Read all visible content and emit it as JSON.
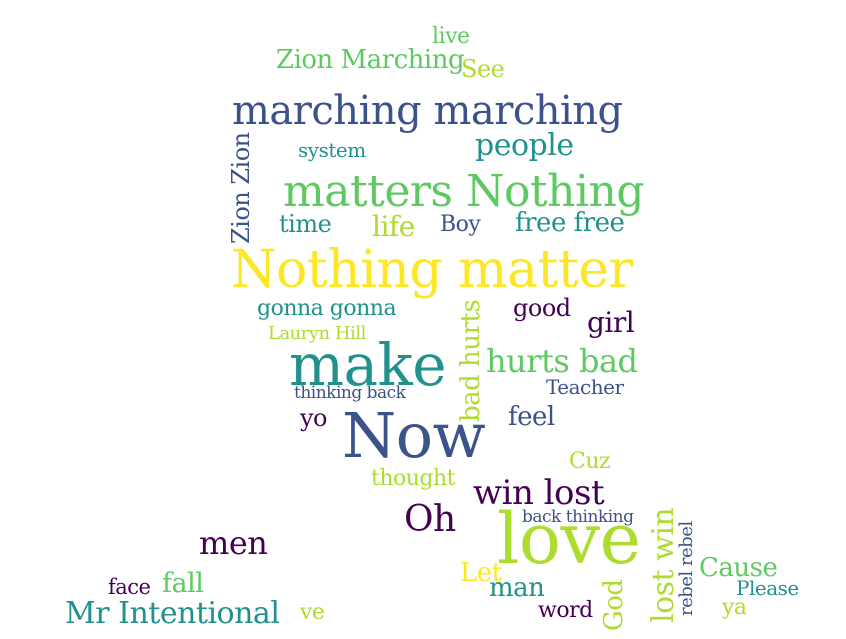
{
  "palette": {
    "dark_purple": "#440154",
    "indigo": "#3b528b",
    "teal": "#21918c",
    "green": "#5ec962",
    "lime": "#addc30",
    "yellow": "#fde725"
  },
  "words": [
    {
      "text": "live",
      "color": "green"
    },
    {
      "text": "Zion Marching",
      "color": "green"
    },
    {
      "text": "See",
      "color": "lime"
    },
    {
      "text": "marching marching",
      "color": "indigo"
    },
    {
      "text": "people",
      "color": "teal"
    },
    {
      "text": "system",
      "color": "teal"
    },
    {
      "text": "Zion Zion",
      "color": "indigo"
    },
    {
      "text": "matters Nothing",
      "color": "green"
    },
    {
      "text": "time",
      "color": "teal"
    },
    {
      "text": "life",
      "color": "lime"
    },
    {
      "text": "Boy",
      "color": "indigo"
    },
    {
      "text": "free free",
      "color": "teal"
    },
    {
      "text": "Nothing matter",
      "color": "yellow"
    },
    {
      "text": "gonna gonna",
      "color": "teal"
    },
    {
      "text": "good",
      "color": "dark_purple"
    },
    {
      "text": "girl",
      "color": "dark_purple"
    },
    {
      "text": "Lauryn Hill",
      "color": "lime"
    },
    {
      "text": "bad hurts",
      "color": "lime"
    },
    {
      "text": "make",
      "color": "teal"
    },
    {
      "text": "hurts bad",
      "color": "green"
    },
    {
      "text": "Teacher",
      "color": "indigo"
    },
    {
      "text": "thinking back",
      "color": "indigo"
    },
    {
      "text": "yo",
      "color": "dark_purple"
    },
    {
      "text": "Now",
      "color": "indigo"
    },
    {
      "text": "feel",
      "color": "indigo"
    },
    {
      "text": "Cuz",
      "color": "lime"
    },
    {
      "text": "thought",
      "color": "lime"
    },
    {
      "text": "win lost",
      "color": "dark_purple"
    },
    {
      "text": "Oh",
      "color": "dark_purple"
    },
    {
      "text": "back thinking",
      "color": "indigo"
    },
    {
      "text": "love",
      "color": "lime"
    },
    {
      "text": "lost win",
      "color": "lime"
    },
    {
      "text": "rebel rebel",
      "color": "indigo"
    },
    {
      "text": "men",
      "color": "dark_purple"
    },
    {
      "text": "Cause",
      "color": "green"
    },
    {
      "text": "Let",
      "color": "yellow"
    },
    {
      "text": "face",
      "color": "dark_purple"
    },
    {
      "text": "fall",
      "color": "green"
    },
    {
      "text": "man",
      "color": "teal"
    },
    {
      "text": "Please",
      "color": "teal"
    },
    {
      "text": "God",
      "color": "lime"
    },
    {
      "text": "ya",
      "color": "lime"
    },
    {
      "text": "Mr Intentional",
      "color": "teal"
    },
    {
      "text": "ve",
      "color": "lime"
    },
    {
      "text": "word",
      "color": "dark_purple"
    }
  ]
}
